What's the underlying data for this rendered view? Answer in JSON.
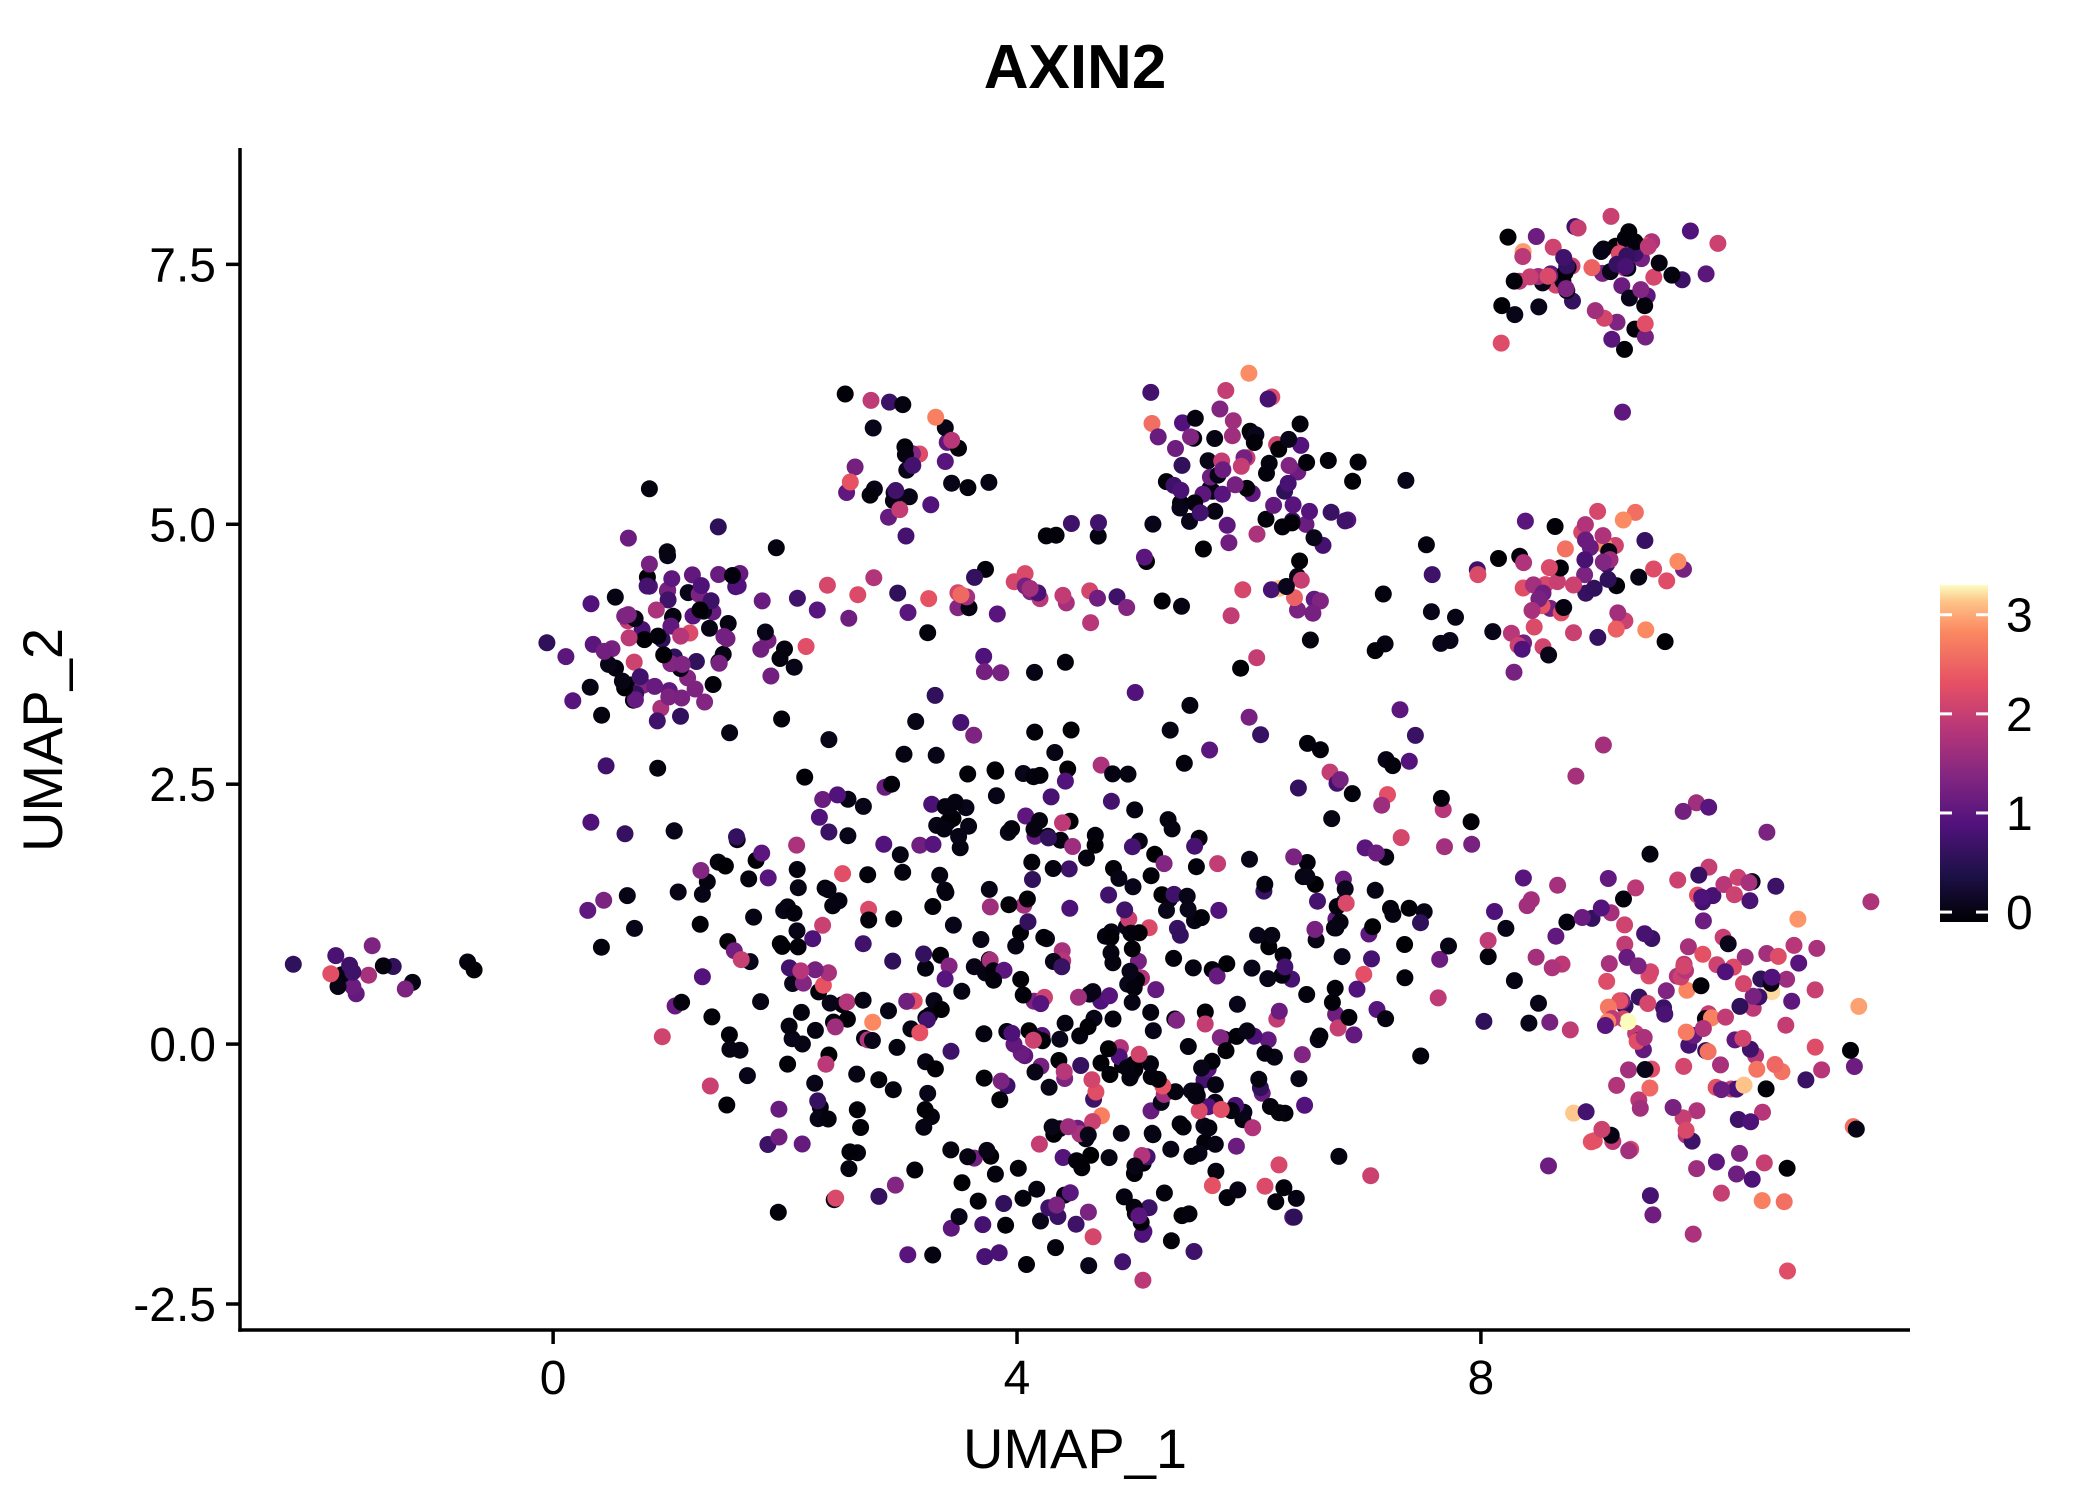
{
  "chart_data": {
    "type": "scatter",
    "title": "AXIN2",
    "xlabel": "UMAP_1",
    "ylabel": "UMAP_2",
    "xlim": [
      -2.7,
      11.7
    ],
    "ylim": [
      -2.75,
      8.6
    ],
    "x_ticks": [
      0,
      4,
      8
    ],
    "x_tick_labels": [
      "0",
      "4",
      "8"
    ],
    "y_ticks": [
      -2.5,
      0.0,
      2.5,
      5.0,
      7.5
    ],
    "y_tick_labels": [
      "-2.5",
      "0.0",
      "2.5",
      "5.0",
      "7.5"
    ],
    "grid": false,
    "background": "#ffffff",
    "axis_color": "#000000",
    "point_radius": 8.5,
    "seed": 42,
    "colorbar": {
      "ticks": [
        0,
        1,
        2,
        3
      ],
      "tick_labels": [
        "0",
        "1",
        "2",
        "3"
      ],
      "vmin": 0,
      "vmax": 3.2,
      "bar_limits": [
        -0.1,
        3.3
      ],
      "stops": [
        {
          "t": 0.0,
          "color": "#000004"
        },
        {
          "t": 0.14,
          "color": "#1d1147"
        },
        {
          "t": 0.29,
          "color": "#51127c"
        },
        {
          "t": 0.43,
          "color": "#822681"
        },
        {
          "t": 0.57,
          "color": "#b63679"
        },
        {
          "t": 0.71,
          "color": "#e65164"
        },
        {
          "t": 0.86,
          "color": "#fb8861"
        },
        {
          "t": 0.95,
          "color": "#fec287"
        },
        {
          "t": 1.0,
          "color": "#fcfdbf"
        }
      ]
    },
    "expr_bins": [
      [
        0.0,
        0.15
      ],
      [
        0.6,
        1.4
      ],
      [
        1.6,
        2.3
      ],
      [
        2.4,
        2.9
      ],
      [
        3.0,
        3.2
      ]
    ],
    "clusters": [
      {
        "name": "far-left-island",
        "cx": -1.65,
        "cy": 0.7,
        "sx": 0.18,
        "sy": 0.12,
        "n": 16,
        "probs": [
          0.4,
          0.45,
          0.15,
          0.0,
          0.0
        ]
      },
      {
        "name": "far-left-outlier",
        "cx": -0.75,
        "cy": 0.8,
        "sx": 0.12,
        "sy": 0.04,
        "n": 2,
        "probs": [
          1.0,
          0.0,
          0.0,
          0.0,
          0.0
        ]
      },
      {
        "name": "left-cluster",
        "cx": 1.1,
        "cy": 3.9,
        "sx": 0.45,
        "sy": 0.55,
        "n": 100,
        "probs": [
          0.5,
          0.42,
          0.08,
          0.0,
          0.0
        ]
      },
      {
        "name": "left-mid-scatter",
        "cx": 0.8,
        "cy": 1.7,
        "sx": 0.35,
        "sy": 0.35,
        "n": 12,
        "probs": [
          0.6,
          0.3,
          0.1,
          0.0,
          0.0
        ]
      },
      {
        "name": "top-middle-cluster",
        "cx": 2.95,
        "cy": 5.6,
        "sx": 0.28,
        "sy": 0.33,
        "n": 34,
        "probs": [
          0.45,
          0.45,
          0.08,
          0.02,
          0.0
        ]
      },
      {
        "name": "mid-band",
        "cx": 3.6,
        "cy": 4.3,
        "sx": 0.8,
        "sy": 0.12,
        "n": 30,
        "probs": [
          0.2,
          0.45,
          0.3,
          0.05,
          0.0
        ]
      },
      {
        "name": "mid-sparse",
        "cx": 4.3,
        "cy": 3.3,
        "sx": 0.9,
        "sy": 0.8,
        "n": 25,
        "probs": [
          0.55,
          0.35,
          0.1,
          0.0,
          0.0
        ]
      },
      {
        "name": "mid-top-sparse",
        "cx": 4.8,
        "cy": 5.05,
        "sx": 0.35,
        "sy": 0.15,
        "n": 5,
        "probs": [
          0.6,
          0.4,
          0.0,
          0.0,
          0.0
        ]
      },
      {
        "name": "upper-central-cluster",
        "cx": 6.0,
        "cy": 5.35,
        "sx": 0.5,
        "sy": 0.45,
        "n": 80,
        "probs": [
          0.3,
          0.55,
          0.13,
          0.02,
          0.0
        ]
      },
      {
        "name": "upper-central-hotspot",
        "cx": 6.35,
        "cy": 4.35,
        "sx": 0.25,
        "sy": 0.25,
        "n": 12,
        "probs": [
          0.1,
          0.25,
          0.35,
          0.2,
          0.1
        ]
      },
      {
        "name": "upper-right-sparse",
        "cx": 7.3,
        "cy": 4.2,
        "sx": 0.4,
        "sy": 0.5,
        "n": 10,
        "probs": [
          0.8,
          0.2,
          0.0,
          0.0,
          0.0
        ]
      },
      {
        "name": "top-right-cluster",
        "cx": 8.95,
        "cy": 7.5,
        "sx": 0.5,
        "sy": 0.22,
        "n": 65,
        "probs": [
          0.35,
          0.38,
          0.24,
          0.03,
          0.0
        ]
      },
      {
        "name": "top-right-sub",
        "cx": 9.3,
        "cy": 6.85,
        "sx": 0.15,
        "sy": 0.15,
        "n": 6,
        "probs": [
          0.3,
          0.3,
          0.4,
          0.0,
          0.0
        ]
      },
      {
        "name": "top-right-outlier-pink",
        "cx": 8.15,
        "cy": 6.7,
        "sx": 0.04,
        "sy": 0.04,
        "n": 1,
        "probs": [
          0.0,
          0.0,
          1.0,
          0.0,
          0.0
        ]
      },
      {
        "name": "top-right-outlier-purple",
        "cx": 9.2,
        "cy": 6.1,
        "sx": 0.04,
        "sy": 0.04,
        "n": 1,
        "probs": [
          0.0,
          1.0,
          0.0,
          0.0,
          0.0
        ]
      },
      {
        "name": "right-mid-cluster",
        "cx": 8.9,
        "cy": 4.5,
        "sx": 0.42,
        "sy": 0.35,
        "n": 55,
        "probs": [
          0.15,
          0.3,
          0.4,
          0.15,
          0.0
        ]
      },
      {
        "name": "right-mid-tail",
        "cx": 8.6,
        "cy": 3.85,
        "sx": 0.3,
        "sy": 0.12,
        "n": 10,
        "probs": [
          0.3,
          0.4,
          0.3,
          0.0,
          0.0
        ]
      },
      {
        "name": "central-mass",
        "cx": 4.8,
        "cy": 0.35,
        "sx": 1.3,
        "sy": 1.0,
        "n": 300,
        "probs": [
          0.62,
          0.27,
          0.1,
          0.01,
          0.0
        ]
      },
      {
        "name": "central-left-lobe",
        "cx": 2.1,
        "cy": 0.6,
        "sx": 0.6,
        "sy": 1.0,
        "n": 90,
        "probs": [
          0.72,
          0.24,
          0.04,
          0.0,
          0.0
        ]
      },
      {
        "name": "central-upper-sparse",
        "cx": 4.0,
        "cy": 2.2,
        "sx": 1.1,
        "sy": 0.5,
        "n": 60,
        "probs": [
          0.65,
          0.28,
          0.07,
          0.0,
          0.0
        ]
      },
      {
        "name": "central-bottom-tail",
        "cx": 4.6,
        "cy": -1.4,
        "sx": 0.9,
        "sy": 0.35,
        "n": 60,
        "probs": [
          0.6,
          0.3,
          0.1,
          0.0,
          0.0
        ]
      },
      {
        "name": "central-right-lobe",
        "cx": 6.9,
        "cy": 1.3,
        "sx": 0.4,
        "sy": 0.9,
        "n": 40,
        "probs": [
          0.5,
          0.35,
          0.15,
          0.0,
          0.0
        ]
      },
      {
        "name": "connector",
        "cx": 7.15,
        "cy": 2.6,
        "sx": 0.25,
        "sy": 0.25,
        "n": 8,
        "probs": [
          0.25,
          0.25,
          0.3,
          0.2,
          0.0
        ]
      },
      {
        "name": "right-gap-sparse",
        "cx": 8.55,
        "cy": 0.6,
        "sx": 0.25,
        "sy": 0.6,
        "n": 12,
        "probs": [
          0.5,
          0.3,
          0.2,
          0.0,
          0.0
        ]
      },
      {
        "name": "bottom-right-cluster",
        "cx": 9.9,
        "cy": 0.35,
        "sx": 0.62,
        "sy": 0.85,
        "n": 170,
        "probs": [
          0.12,
          0.33,
          0.43,
          0.1,
          0.02
        ]
      }
    ]
  }
}
